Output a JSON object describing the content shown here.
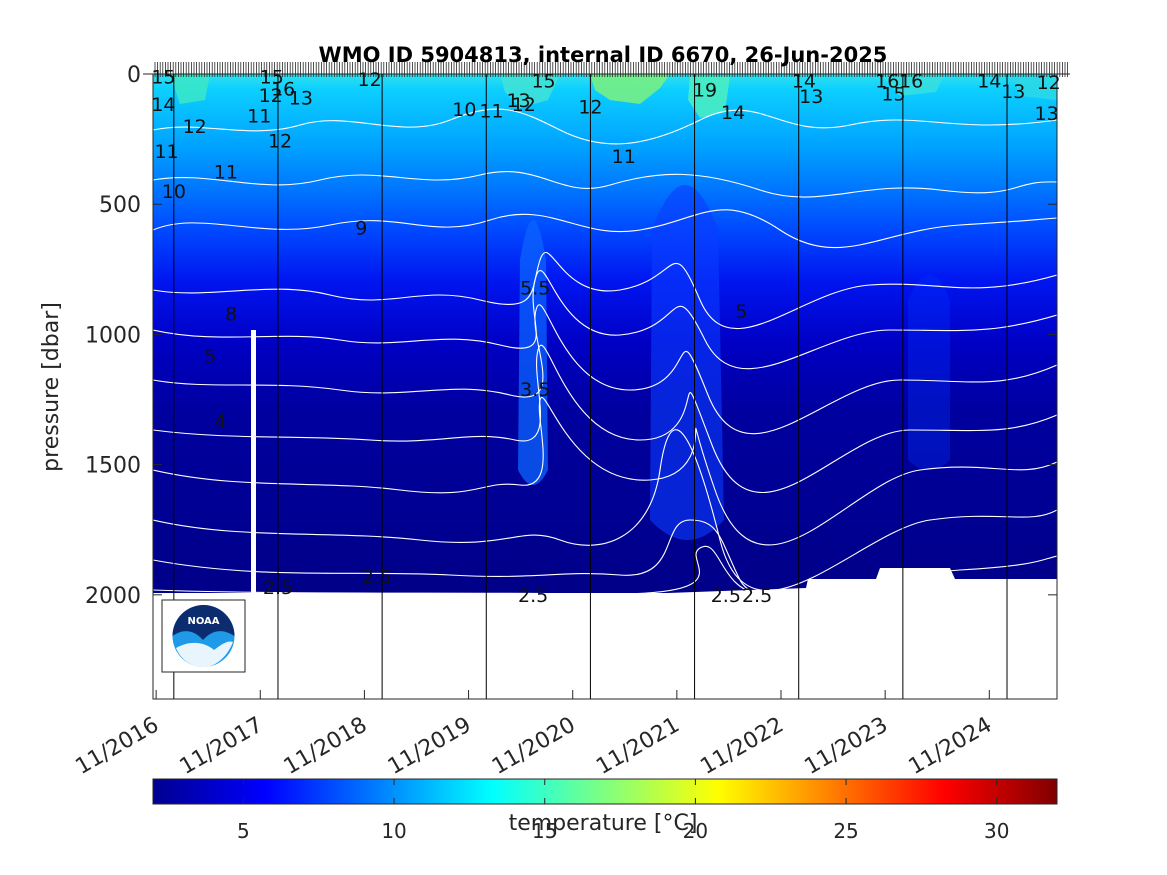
{
  "chart_data": {
    "type": "heatmap",
    "title": "WMO ID 5904813, internal ID 6670, 26-Jun-2025",
    "ylabel": "pressure [dbar]",
    "xlabel": "",
    "ylim": [
      0,
      2400
    ],
    "y_reversed": true,
    "yticks": [
      0,
      500,
      1000,
      1500,
      2000
    ],
    "ytick_labels": [
      "0",
      "500",
      "1000",
      "1500",
      "2000"
    ],
    "xtick_labels": [
      "11/2016",
      "11/2017",
      "11/2018",
      "11/2019",
      "11/2020",
      "11/2021",
      "11/2022",
      "11/2023",
      "11/2024"
    ],
    "x_year_fractions": [
      2016.83,
      2017.83,
      2018.83,
      2019.83,
      2020.83,
      2021.83,
      2022.83,
      2023.83,
      2024.83
    ],
    "xlim_years": [
      2016.8,
      2025.48
    ],
    "yearly_markers_years": [
      2017.0,
      2018.0,
      2019.0,
      2020.0,
      2021.0,
      2022.0,
      2023.0,
      2024.0,
      2025.0
    ],
    "colormap": "jet",
    "colorbar": {
      "label": "temperature [°C]",
      "range": [
        2,
        32
      ],
      "ticks": [
        5,
        10,
        15,
        20,
        25,
        30
      ],
      "tick_labels": [
        "5",
        "10",
        "15",
        "20",
        "25",
        "30"
      ]
    },
    "contour_labels": [
      {
        "text": "15",
        "year": 2016.9,
        "p": 10
      },
      {
        "text": "14",
        "year": 2016.9,
        "p": 115
      },
      {
        "text": "12",
        "year": 2017.2,
        "p": 200
      },
      {
        "text": "11",
        "year": 2016.93,
        "p": 295
      },
      {
        "text": "10",
        "year": 2017.0,
        "p": 450
      },
      {
        "text": "11",
        "year": 2017.5,
        "p": 375
      },
      {
        "text": "15",
        "year": 2017.94,
        "p": 10
      },
      {
        "text": "12",
        "year": 2017.93,
        "p": 80
      },
      {
        "text": "16",
        "year": 2018.05,
        "p": 55
      },
      {
        "text": "13",
        "year": 2018.22,
        "p": 90
      },
      {
        "text": "11",
        "year": 2017.82,
        "p": 160
      },
      {
        "text": "12",
        "year": 2018.02,
        "p": 255
      },
      {
        "text": "12",
        "year": 2018.88,
        "p": 20
      },
      {
        "text": "9",
        "year": 2018.8,
        "p": 590
      },
      {
        "text": "10",
        "year": 2019.79,
        "p": 135
      },
      {
        "text": "11",
        "year": 2020.05,
        "p": 140
      },
      {
        "text": "13",
        "year": 2020.31,
        "p": 100
      },
      {
        "text": "12",
        "year": 2020.36,
        "p": 115
      },
      {
        "text": "15",
        "year": 2020.55,
        "p": 25
      },
      {
        "text": "12",
        "year": 2021.0,
        "p": 125
      },
      {
        "text": "11",
        "year": 2021.32,
        "p": 315
      },
      {
        "text": "19",
        "year": 2022.1,
        "p": 60
      },
      {
        "text": "14",
        "year": 2022.37,
        "p": 145
      },
      {
        "text": "14",
        "year": 2023.05,
        "p": 25
      },
      {
        "text": "13",
        "year": 2023.12,
        "p": 85
      },
      {
        "text": "16",
        "year": 2023.85,
        "p": 25
      },
      {
        "text": "16",
        "year": 2024.08,
        "p": 25
      },
      {
        "text": "15",
        "year": 2023.91,
        "p": 75
      },
      {
        "text": "14",
        "year": 2024.83,
        "p": 25
      },
      {
        "text": "13",
        "year": 2025.06,
        "p": 65
      },
      {
        "text": "12",
        "year": 2025.4,
        "p": 30
      },
      {
        "text": "13",
        "year": 2025.38,
        "p": 150
      },
      {
        "text": "8",
        "year": 2017.55,
        "p": 920
      },
      {
        "text": "5",
        "year": 2017.35,
        "p": 1080
      },
      {
        "text": "4",
        "year": 2017.45,
        "p": 1330
      },
      {
        "text": "5.5",
        "year": 2020.47,
        "p": 820
      },
      {
        "text": "5",
        "year": 2022.45,
        "p": 910
      },
      {
        "text": "3.5",
        "year": 2020.47,
        "p": 1210
      },
      {
        "text": "2.5",
        "year": 2018.95,
        "p": 1930
      },
      {
        "text": "2.5",
        "year": 2018.0,
        "p": 1970
      },
      {
        "text": "2.5",
        "year": 2020.45,
        "p": 2000
      },
      {
        "text": "2.5",
        "year": 2022.3,
        "p": 2000
      },
      {
        "text": "2.5",
        "year": 2022.6,
        "p": 2000
      }
    ],
    "logo": "noaa-logo"
  }
}
